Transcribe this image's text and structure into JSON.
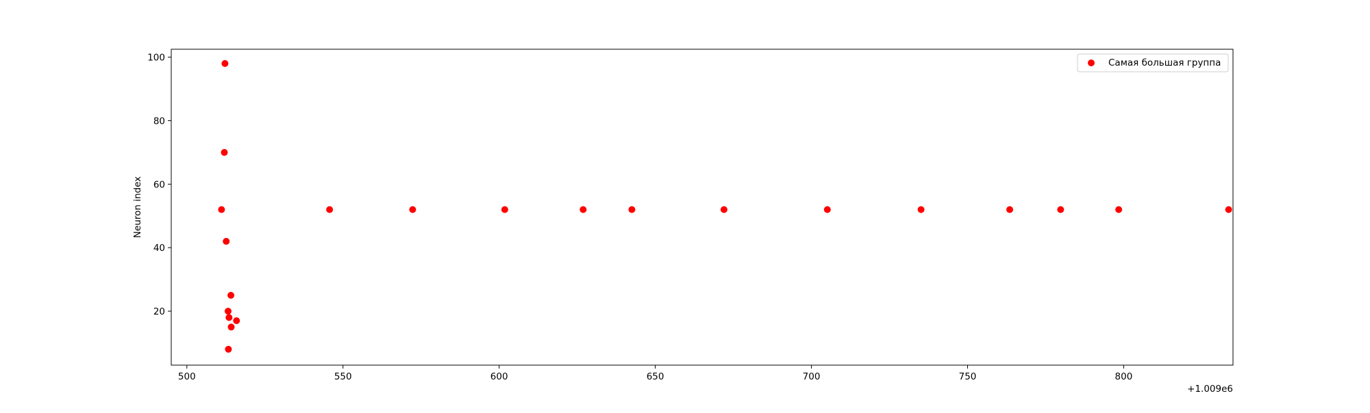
{
  "chart_data": {
    "type": "scatter",
    "title": "",
    "xlabel": "",
    "ylabel": "Neuron index",
    "x_offset_label": "+1.009e6",
    "xlim": [
      495,
      835
    ],
    "ylim": [
      3,
      102.5
    ],
    "xticks": [
      500,
      550,
      600,
      650,
      700,
      750,
      800
    ],
    "yticks": [
      20,
      40,
      60,
      80,
      100
    ],
    "grid": false,
    "legend_position": "top-right",
    "series": [
      {
        "name": "Самая большая группа",
        "color": "#ff0000",
        "marker": "circle",
        "points": [
          {
            "x": 511.1,
            "y": 52
          },
          {
            "x": 512.0,
            "y": 70
          },
          {
            "x": 512.2,
            "y": 98
          },
          {
            "x": 512.6,
            "y": 42
          },
          {
            "x": 513.2,
            "y": 20
          },
          {
            "x": 513.3,
            "y": 8
          },
          {
            "x": 513.5,
            "y": 18
          },
          {
            "x": 514.1,
            "y": 25
          },
          {
            "x": 514.2,
            "y": 15
          },
          {
            "x": 515.9,
            "y": 17
          },
          {
            "x": 545.7,
            "y": 52
          },
          {
            "x": 572.3,
            "y": 52
          },
          {
            "x": 601.8,
            "y": 52
          },
          {
            "x": 626.9,
            "y": 52
          },
          {
            "x": 642.5,
            "y": 52
          },
          {
            "x": 672.0,
            "y": 52
          },
          {
            "x": 705.1,
            "y": 52
          },
          {
            "x": 735.1,
            "y": 52
          },
          {
            "x": 763.5,
            "y": 52
          },
          {
            "x": 779.8,
            "y": 52
          },
          {
            "x": 798.4,
            "y": 52
          },
          {
            "x": 833.6,
            "y": 52
          }
        ]
      }
    ]
  }
}
